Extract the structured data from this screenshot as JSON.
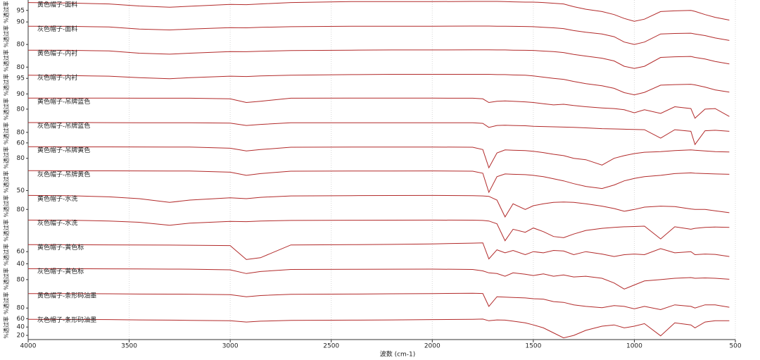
{
  "chart_data": {
    "type": "line",
    "color": "#b22a2a",
    "grid": true,
    "xlabel": "波数 (cm-1)",
    "ylabel": "%透过率",
    "xlim": [
      4000,
      500
    ],
    "xticks": [
      4000,
      3500,
      3000,
      2500,
      2000,
      1500,
      1000,
      500
    ],
    "x": [
      4000,
      3800,
      3600,
      3450,
      3300,
      3200,
      3000,
      2920,
      2850,
      2700,
      2400,
      2200,
      2000,
      1800,
      1750,
      1720,
      1680,
      1640,
      1600,
      1540,
      1500,
      1450,
      1400,
      1350,
      1300,
      1240,
      1160,
      1100,
      1050,
      1000,
      950,
      870,
      800,
      720,
      700,
      650,
      600,
      530
    ],
    "series": [
      {
        "name": "黄色帽子-面料",
        "ylim": [
          89,
          99.5
        ],
        "yticks": [
          95,
          90
        ],
        "values": [
          98.4,
          98.2,
          97.8,
          96.9,
          96.4,
          96.8,
          97.6,
          97.5,
          97.8,
          98.4,
          98.8,
          98.8,
          98.8,
          98.9,
          98.9,
          98.9,
          98.9,
          98.8,
          98.7,
          98.6,
          98.6,
          98.4,
          98.1,
          97.8,
          96.6,
          95.5,
          94.5,
          93.2,
          91.5,
          90.3,
          91.2,
          94.5,
          94.8,
          95.0,
          94.6,
          93.2,
          92.0,
          90.8
        ]
      },
      {
        "name": "灰色帽子-面料",
        "ylim": [
          77.5,
          92.5
        ],
        "yticks": [
          80
        ],
        "values": [
          91.3,
          91.2,
          90.8,
          89.5,
          89.0,
          89.5,
          90.4,
          90.3,
          90.6,
          91.0,
          91.3,
          91.3,
          91.3,
          91.4,
          91.4,
          91.4,
          91.3,
          91.3,
          91.2,
          91.1,
          91.0,
          90.6,
          90.3,
          89.8,
          88.6,
          87.6,
          86.5,
          84.8,
          81.5,
          80.0,
          81.5,
          86.5,
          86.8,
          87.0,
          86.5,
          85.5,
          84.0,
          82.5
        ]
      },
      {
        "name": "黄色帽子-内衬",
        "ylim": [
          76.5,
          91.5
        ],
        "yticks": [
          80
        ],
        "values": [
          90.5,
          90.4,
          90.0,
          88.6,
          88.0,
          88.6,
          89.6,
          89.5,
          89.8,
          90.2,
          90.5,
          90.6,
          90.6,
          90.7,
          90.7,
          90.7,
          90.6,
          90.6,
          90.5,
          90.4,
          90.3,
          89.9,
          89.6,
          89.0,
          87.8,
          86.8,
          85.5,
          83.8,
          80.5,
          79.2,
          80.5,
          86.0,
          86.4,
          86.6,
          86.0,
          85.0,
          83.5,
          82.0
        ]
      },
      {
        "name": "灰色帽子-内衬",
        "ylim": [
          89,
          96.8
        ],
        "yticks": [
          95,
          90
        ],
        "values": [
          96.0,
          95.9,
          95.7,
          95.2,
          94.9,
          95.2,
          95.7,
          95.6,
          95.8,
          96.0,
          96.2,
          96.3,
          96.3,
          96.3,
          96.3,
          96.3,
          96.2,
          96.2,
          96.1,
          96.0,
          95.8,
          95.4,
          95.0,
          94.7,
          94.0,
          93.3,
          92.6,
          91.8,
          90.4,
          89.7,
          90.5,
          92.8,
          93.0,
          93.1,
          92.9,
          92.2,
          91.3,
          90.6
        ]
      },
      {
        "name": "黄色帽子-吊牌蓝色",
        "ylim": [
          70,
          90
        ],
        "yticks": [
          80
        ],
        "values": [
          89.1,
          89.1,
          89.1,
          89.0,
          89.0,
          89.0,
          88.5,
          85.5,
          86.5,
          89.0,
          89.1,
          89.1,
          89.1,
          89.0,
          88.5,
          85.5,
          86.5,
          86.8,
          86.5,
          86.0,
          85.5,
          84.5,
          83.5,
          84.0,
          83.0,
          82.0,
          81.0,
          80.5,
          79.5,
          77.0,
          79.5,
          76.5,
          82.0,
          80.5,
          72.5,
          80.0,
          80.5,
          74.0
        ]
      },
      {
        "name": "灰色帽子-吊牌蓝色",
        "ylim": [
          55,
          101
        ],
        "yticks": [
          80,
          60
        ],
        "values": [
          98.5,
          98.5,
          98.4,
          98.3,
          98.2,
          98.2,
          97.5,
          93.0,
          95.0,
          98.2,
          98.3,
          98.3,
          98.3,
          98.1,
          97.0,
          89.5,
          93.0,
          93.5,
          93.0,
          92.5,
          91.5,
          91.0,
          90.5,
          90.0,
          89.5,
          88.5,
          87.0,
          86.5,
          86.0,
          85.5,
          85.0,
          69.0,
          85.0,
          82.0,
          57.0,
          83.0,
          84.0,
          82.0
        ]
      },
      {
        "name": "黄色帽子-吊牌黄色",
        "ylim": [
          63,
          99
        ],
        "yticks": [
          80
        ],
        "values": [
          97.2,
          97.1,
          97.0,
          96.9,
          96.8,
          96.7,
          95.0,
          91.0,
          93.0,
          96.5,
          96.7,
          96.8,
          96.8,
          96.5,
          93.0,
          66.0,
          88.0,
          92.5,
          92.0,
          91.5,
          90.5,
          88.5,
          86.0,
          84.0,
          80.0,
          78.0,
          70.0,
          80.0,
          84.0,
          87.0,
          89.0,
          90.0,
          91.5,
          92.5,
          92.0,
          91.0,
          90.0,
          89.5
        ]
      },
      {
        "name": "灰色帽子-吊牌黄色",
        "ylim": [
          45,
          80
        ],
        "yticks": [
          50
        ],
        "values": [
          78.7,
          78.6,
          78.5,
          78.4,
          78.3,
          78.2,
          76.5,
          72.0,
          74.5,
          78.0,
          78.2,
          78.3,
          78.4,
          78.0,
          75.0,
          47.5,
          70.0,
          74.0,
          73.5,
          73.0,
          72.0,
          70.0,
          67.0,
          64.0,
          60.0,
          56.0,
          53.0,
          58.0,
          64.0,
          67.5,
          70.0,
          72.0,
          74.5,
          75.5,
          75.0,
          74.5,
          74.0,
          73.5
        ]
      },
      {
        "name": "黄色帽子-水洗",
        "ylim": [
          70.5,
          96.5
        ],
        "yticks": [
          80
        ],
        "values": [
          95.0,
          94.8,
          93.5,
          91.5,
          87.5,
          90.0,
          92.5,
          91.5,
          93.0,
          94.5,
          94.8,
          94.9,
          95.0,
          94.8,
          94.5,
          94.0,
          90.0,
          72.0,
          86.0,
          80.0,
          84.0,
          86.0,
          87.5,
          88.0,
          87.5,
          86.0,
          83.5,
          81.0,
          78.0,
          80.0,
          82.5,
          83.5,
          83.0,
          80.5,
          80.0,
          80.0,
          78.5,
          76.5
        ]
      },
      {
        "name": "灰色帽子-水洗",
        "ylim": [
          60,
          100
        ],
        "values": [
          97.0,
          96.8,
          95.5,
          93.5,
          88.5,
          92.0,
          95.0,
          94.5,
          95.5,
          96.5,
          96.8,
          96.9,
          97.0,
          96.9,
          96.5,
          95.5,
          91.0,
          63.0,
          82.0,
          77.0,
          84.0,
          78.0,
          70.0,
          68.0,
          74.0,
          80.0,
          83.5,
          85.0,
          86.0,
          86.5,
          87.0,
          66.0,
          86.0,
          82.0,
          83.5,
          85.0,
          85.5,
          85.0
        ]
      },
      {
        "name": "黄色帽子-黄色标",
        "ylim": [
          35,
          75
        ],
        "yticks": [
          60,
          40
        ],
        "values": [
          71.6,
          71.4,
          71.2,
          71.0,
          70.8,
          70.6,
          70.0,
          47.0,
          50.0,
          71.0,
          71.5,
          72.0,
          72.8,
          74.0,
          74.5,
          48.0,
          63.0,
          58.0,
          62.0,
          55.0,
          60.0,
          58.0,
          62.0,
          61.0,
          55.0,
          60.0,
          56.0,
          52.0,
          55.0,
          56.0,
          55.0,
          65.0,
          58.0,
          60.0,
          55.0,
          56.0,
          55.5,
          52.0
        ]
      },
      {
        "name": "灰色帽子-黄色标",
        "ylim": [
          63,
          99
        ],
        "yticks": [
          80
        ],
        "values": [
          96.2,
          96.1,
          96.0,
          95.8,
          95.6,
          95.5,
          94.5,
          89.0,
          92.0,
          95.0,
          95.3,
          95.5,
          95.6,
          95.0,
          93.0,
          90.0,
          89.0,
          85.0,
          90.0,
          88.0,
          86.0,
          88.5,
          85.0,
          87.0,
          84.0,
          85.0,
          82.0,
          75.0,
          66.0,
          72.0,
          78.0,
          80.0,
          82.0,
          83.0,
          82.0,
          82.5,
          82.0,
          80.5
        ]
      },
      {
        "name": "黄色帽子-条形码油墨",
        "ylim": [
          71,
          101
        ],
        "yticks": [
          80
        ],
        "values": [
          97.9,
          97.8,
          97.6,
          97.3,
          97.2,
          97.1,
          96.5,
          94.0,
          95.5,
          97.0,
          97.3,
          97.6,
          97.9,
          98.3,
          98.0,
          82.0,
          94.0,
          93.5,
          93.0,
          92.5,
          91.5,
          91.0,
          88.0,
          87.0,
          84.0,
          82.0,
          80.5,
          83.0,
          82.0,
          79.0,
          82.0,
          78.0,
          84.0,
          82.0,
          80.0,
          84.0,
          84.0,
          81.0
        ]
      },
      {
        "name": "灰色帽子-条形码油墨",
        "ylim": [
          10,
          68
        ],
        "yticks": [
          60,
          40,
          20
        ],
        "values": [
          58.5,
          58.2,
          57.8,
          57.0,
          56.5,
          56.0,
          55.0,
          52.0,
          54.0,
          56.0,
          56.5,
          57.0,
          57.8,
          58.5,
          59.0,
          55.0,
          57.0,
          56.5,
          54.0,
          50.0,
          45.0,
          38.0,
          26.0,
          14.0,
          20.0,
          32.0,
          42.0,
          45.0,
          38.0,
          42.0,
          48.0,
          19.0,
          50.0,
          45.0,
          38.0,
          52.0,
          55.0,
          55.0
        ]
      }
    ]
  }
}
